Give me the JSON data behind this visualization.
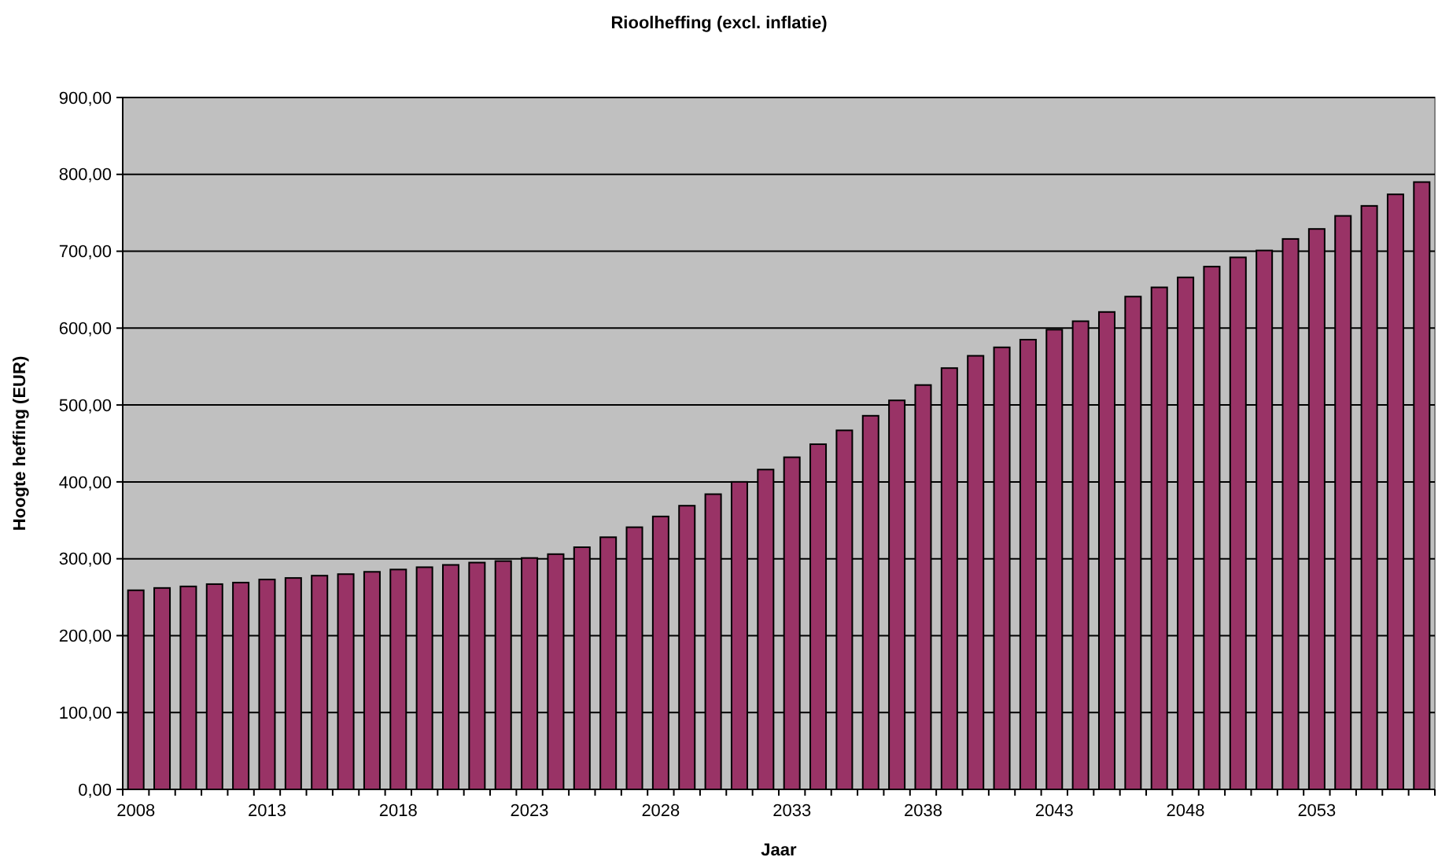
{
  "chart_data": {
    "type": "bar",
    "title": "Rioolheffing (excl. inflatie)",
    "xlabel": "Jaar",
    "ylabel": "Hoogte heffing (EUR)",
    "categories": [
      "2008",
      null,
      null,
      null,
      null,
      "2013",
      null,
      null,
      null,
      null,
      "2018",
      null,
      null,
      null,
      null,
      "2023",
      null,
      null,
      null,
      null,
      "2028",
      null,
      null,
      null,
      null,
      "2033",
      null,
      null,
      null,
      null,
      "2038",
      null,
      null,
      null,
      null,
      "2043",
      null,
      null,
      null,
      null,
      "2048",
      null,
      null,
      null,
      null,
      "2053",
      null,
      null,
      null,
      null
    ],
    "values": [
      259,
      262,
      264,
      267,
      269,
      273,
      275,
      278,
      280,
      283,
      286,
      289,
      292,
      295,
      297,
      301,
      306,
      315,
      328,
      341,
      355,
      369,
      384,
      400,
      416,
      432,
      449,
      467,
      486,
      506,
      526,
      548,
      564,
      575,
      585,
      598,
      609,
      621,
      641,
      653,
      666,
      680,
      692,
      701,
      716,
      729,
      746,
      759,
      774,
      790
    ],
    "color": "#993366",
    "ylim": [
      0,
      900
    ],
    "yticks": [
      {
        "value": 0,
        "label": "0,00"
      },
      {
        "value": 100,
        "label": "100,00"
      },
      {
        "value": 200,
        "label": "200,00"
      },
      {
        "value": 300,
        "label": "300,00"
      },
      {
        "value": 400,
        "label": "400,00"
      },
      {
        "value": 500,
        "label": "500,00"
      },
      {
        "value": 600,
        "label": "600,00"
      },
      {
        "value": 700,
        "label": "700,00"
      },
      {
        "value": 800,
        "label": "800,00"
      },
      {
        "value": 900,
        "label": "900,00"
      }
    ],
    "grid": "y"
  }
}
